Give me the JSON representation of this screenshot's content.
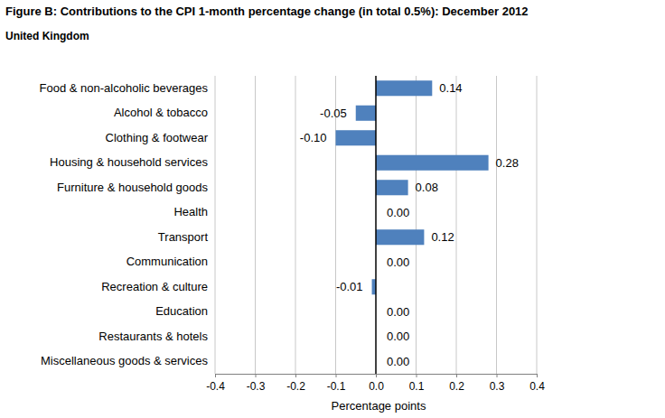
{
  "chart_data": {
    "type": "bar",
    "orientation": "horizontal",
    "title": "Figure B: Contributions to the CPI 1-month percentage change (in total 0.5%): December 2012",
    "subtitle": "United Kingdom",
    "x_label": "Percentage points",
    "categories": [
      "Food & non-alcoholic beverages",
      "Alcohol & tobacco",
      "Clothing & footwear",
      "Housing & household services",
      "Furniture & household goods",
      "Health",
      "Transport",
      "Communication",
      "Recreation & culture",
      "Education",
      "Restaurants & hotels",
      "Miscellaneous goods & services"
    ],
    "values": [
      0.14,
      -0.05,
      -0.1,
      0.28,
      0.08,
      0,
      0.12,
      0,
      -0.01,
      0,
      0,
      0
    ],
    "value_labels": [
      "0.14",
      "-0.05",
      "-0.10",
      "0.28",
      "0.08",
      "0.00",
      "0.12",
      "0.00",
      "-0.01",
      "0.00",
      "0.00",
      "0.00"
    ],
    "color": "#4f81bd",
    "xlim": [
      -0.4,
      0.4
    ],
    "xticks": [
      -0.4,
      -0.3,
      -0.2,
      -0.1,
      {
        "value": 0,
        "label": "0.0"
      },
      0.1,
      0.2,
      0.3,
      0.4
    ],
    "grid": true,
    "data_labels": true
  }
}
